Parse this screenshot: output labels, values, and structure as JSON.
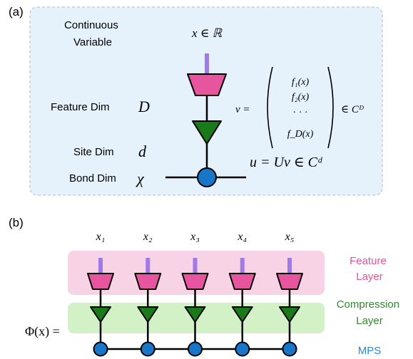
{
  "panel_a": {
    "tag": "(a)",
    "continuous_variable": [
      "Continuous",
      "Variable"
    ],
    "x_domain": "x ∈ ℝ",
    "feature_dim_label": "Feature Dim",
    "feature_dim_symbol": "D",
    "site_dim_label": "Site Dim",
    "site_dim_symbol": "d",
    "bond_dim_label": "Bond Dim",
    "bond_dim_symbol": "χ",
    "v_lhs": "v =",
    "v_entries": [
      "f₁(x)",
      "f₂(x)",
      "· · ·",
      "f_D(x)"
    ],
    "v_space": "∈ Cᴰ",
    "u_eq": "u = Uv ∈ Cᵈ"
  },
  "panel_b": {
    "tag": "(b)",
    "inputs": [
      "x₁",
      "x₂",
      "x₃",
      "x₄",
      "x₅"
    ],
    "phi_label": "Φ(x) =",
    "layers": {
      "feature": [
        "Feature",
        "Layer"
      ],
      "compression": [
        "Compression",
        "Layer"
      ],
      "mps": "MPS"
    }
  },
  "colors": {
    "panel_bg": "#e5f1fb",
    "panel_border": "#c8cfd6",
    "feature_tensor": "#e8559f",
    "compression_tensor": "#1a7a1a",
    "mps_node": "#1876c9",
    "input_leg": "#a07be6",
    "feature_band": "#f8d3e6",
    "compression_band": "#d3f1c6",
    "feature_text": "#e0559a",
    "compression_text": "#2d8b2d",
    "mps_text": "#2a86d8"
  }
}
